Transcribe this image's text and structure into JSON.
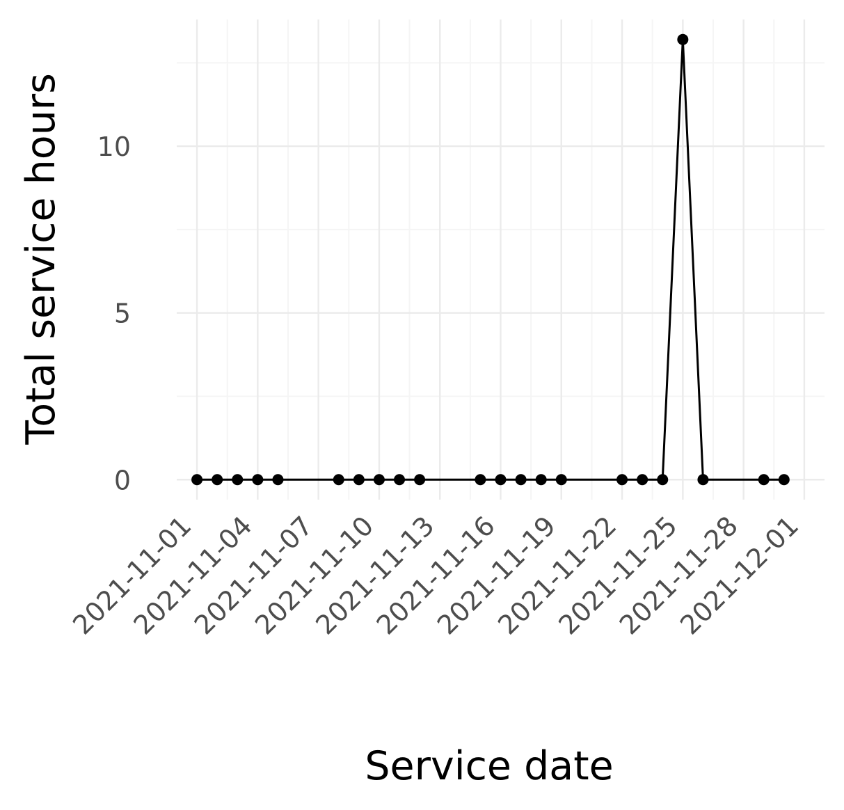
{
  "chart_data": {
    "type": "line",
    "title": "",
    "xlabel": "Service date",
    "ylabel": "Total service hours",
    "x_tick_labels": [
      "2021-11-01",
      "2021-11-04",
      "2021-11-07",
      "2021-11-10",
      "2021-11-13",
      "2021-11-16",
      "2021-11-19",
      "2021-11-22",
      "2021-11-25",
      "2021-11-28",
      "2021-12-01"
    ],
    "y_tick_labels": [
      "0",
      "5",
      "10"
    ],
    "y_ticks": [
      0,
      5,
      10
    ],
    "ylim": [
      -0.6,
      13.8
    ],
    "xlim": [
      "2021-10-31",
      "2021-12-02"
    ],
    "grid": true,
    "series": [
      {
        "x": [
          "2021-11-01",
          "2021-11-02",
          "2021-11-03",
          "2021-11-04",
          "2021-11-05",
          "2021-11-08",
          "2021-11-09",
          "2021-11-10",
          "2021-11-11",
          "2021-11-12",
          "2021-11-15",
          "2021-11-16",
          "2021-11-17",
          "2021-11-18",
          "2021-11-19",
          "2021-11-22",
          "2021-11-23",
          "2021-11-24",
          "2021-11-25",
          "2021-11-26",
          "2021-11-29",
          "2021-11-30"
        ],
        "y": [
          0,
          0,
          0,
          0,
          0,
          0,
          0,
          0,
          0,
          0,
          0,
          0,
          0,
          0,
          0,
          0,
          0,
          0,
          13.2,
          0,
          0,
          0
        ]
      }
    ],
    "colors": {
      "line": "#000000",
      "grid_major": "#ebebeb",
      "grid_minor": "#f5f5f5",
      "tick_text": "#4d4d4d"
    }
  }
}
